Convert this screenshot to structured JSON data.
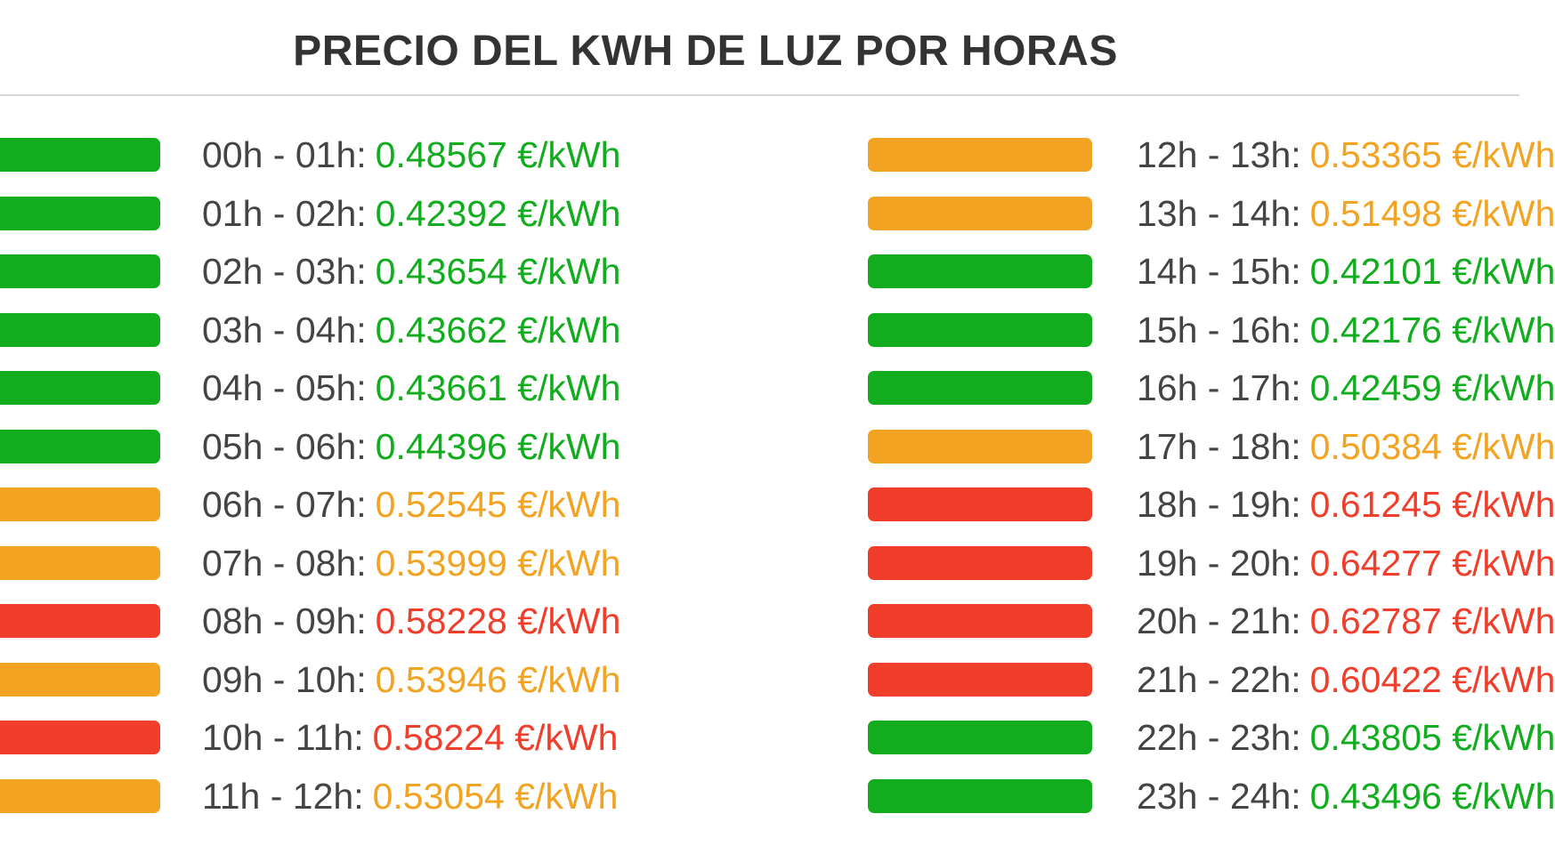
{
  "title": "PRECIO DEL KWH DE LUZ POR HORAS",
  "colors": {
    "low": "#12ad1e",
    "mid": "#f2a322",
    "high": "#f03e2b",
    "text": "#444444"
  },
  "left": [
    {
      "range": "00h - 01h:",
      "price": "0.48567 €/kWh",
      "level": "low"
    },
    {
      "range": "01h - 02h:",
      "price": "0.42392 €/kWh",
      "level": "low"
    },
    {
      "range": "02h - 03h:",
      "price": "0.43654 €/kWh",
      "level": "low"
    },
    {
      "range": "03h - 04h:",
      "price": "0.43662 €/kWh",
      "level": "low"
    },
    {
      "range": "04h - 05h:",
      "price": "0.43661 €/kWh",
      "level": "low"
    },
    {
      "range": "05h - 06h:",
      "price": "0.44396 €/kWh",
      "level": "low"
    },
    {
      "range": "06h - 07h:",
      "price": "0.52545 €/kWh",
      "level": "mid"
    },
    {
      "range": "07h - 08h:",
      "price": "0.53999 €/kWh",
      "level": "mid"
    },
    {
      "range": "08h - 09h:",
      "price": "0.58228 €/kWh",
      "level": "high"
    },
    {
      "range": "09h - 10h:",
      "price": "0.53946 €/kWh",
      "level": "mid"
    },
    {
      "range": "10h - 11h:",
      "price": "0.58224 €/kWh",
      "level": "high"
    },
    {
      "range": "11h - 12h:",
      "price": "0.53054 €/kWh",
      "level": "mid"
    }
  ],
  "right": [
    {
      "range": "12h - 13h:",
      "price": "0.53365 €/kWh",
      "level": "mid"
    },
    {
      "range": "13h - 14h:",
      "price": "0.51498 €/kWh",
      "level": "mid"
    },
    {
      "range": "14h - 15h:",
      "price": "0.42101 €/kWh",
      "level": "low"
    },
    {
      "range": "15h - 16h:",
      "price": "0.42176 €/kWh",
      "level": "low"
    },
    {
      "range": "16h - 17h:",
      "price": "0.42459 €/kWh",
      "level": "low"
    },
    {
      "range": "17h - 18h:",
      "price": "0.50384 €/kWh",
      "level": "mid"
    },
    {
      "range": "18h - 19h:",
      "price": "0.61245 €/kWh",
      "level": "high"
    },
    {
      "range": "19h - 20h:",
      "price": "0.64277 €/kWh",
      "level": "high"
    },
    {
      "range": "20h - 21h:",
      "price": "0.62787 €/kWh",
      "level": "high"
    },
    {
      "range": "21h - 22h:",
      "price": "0.60422 €/kWh",
      "level": "high"
    },
    {
      "range": "22h - 23h:",
      "price": "0.43805 €/kWh",
      "level": "low"
    },
    {
      "range": "23h - 24h:",
      "price": "0.43496 €/kWh",
      "level": "low"
    }
  ]
}
